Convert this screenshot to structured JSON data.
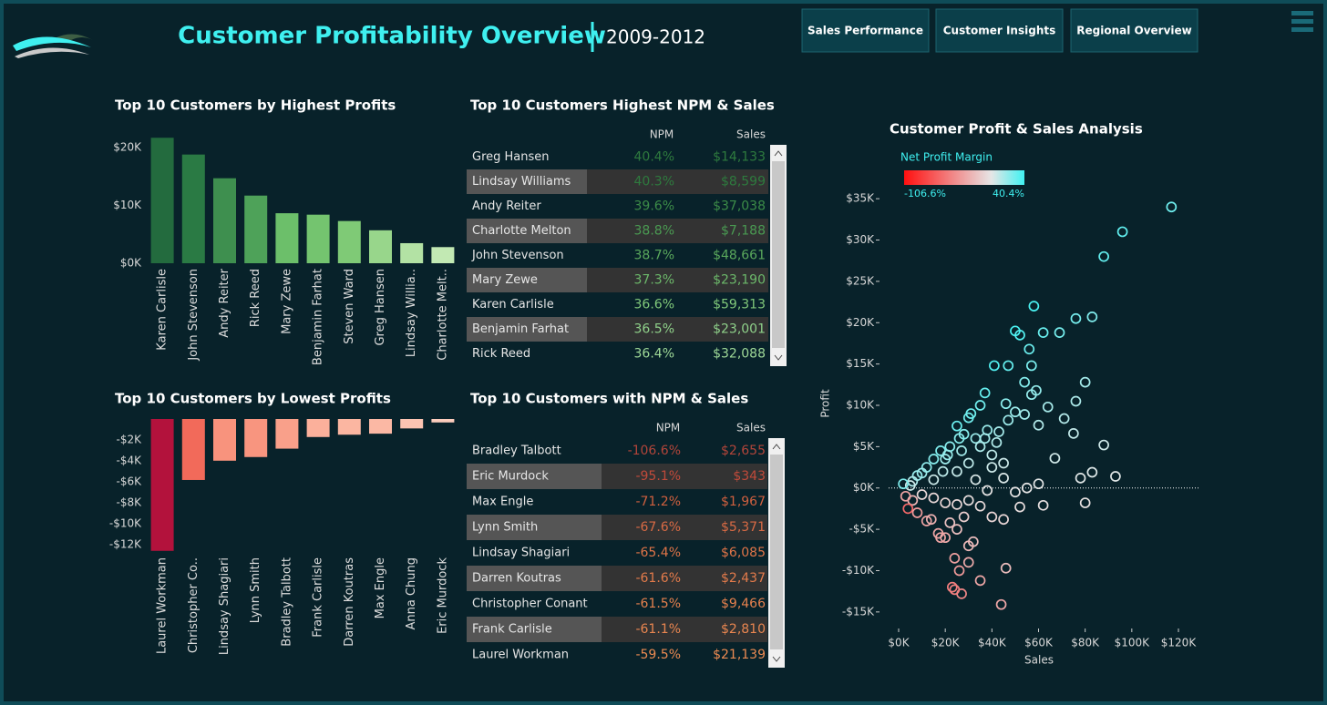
{
  "header": {
    "title": "Customer Profitability Overview",
    "subtitle": "2009-2012"
  },
  "nav": [
    "Sales Performance",
    "Customer Insights",
    "Regional Overview"
  ],
  "chart_data": [
    {
      "type": "bar",
      "title": "Top 10 Customers by Highest Profits",
      "categories": [
        "Karen Carlisle",
        "John Stevenson",
        "Andy Reiter",
        "Rick Reed",
        "Mary Zewe",
        "Benjamin Farhat",
        "Steven Ward",
        "Greg Hansen",
        "Lindsay Willia..",
        "Charlotte Melt.."
      ],
      "values": [
        21700,
        18800,
        14700,
        11700,
        8650,
        8400,
        7300,
        5700,
        3470,
        2790
      ],
      "colors": [
        "#236b3e",
        "#2a7a44",
        "#3e8f4f",
        "#4ea259",
        "#6cbf6a",
        "#74c46f",
        "#7fca76",
        "#98d68b",
        "#b3e2a4",
        "#c2e9b3"
      ],
      "ylim": [
        0,
        23000
      ],
      "yticks": [
        {
          "value": 0,
          "label": "$0K"
        },
        {
          "value": 10000,
          "label": "$10K"
        },
        {
          "value": 20000,
          "label": "$20K"
        }
      ]
    },
    {
      "type": "bar",
      "title": "Top 10 Customers by Lowest Profits",
      "categories": [
        "Laurel Workman",
        "Christopher Co..",
        "Lindsay Shagiari",
        "Lynn Smith",
        "Bradley Talbott",
        "Frank Carlisle",
        "Darren Koutras",
        "Max Engle",
        "Anna Chung",
        "Eric Murdock"
      ],
      "values": [
        -12580,
        -5820,
        -3980,
        -3630,
        -2830,
        -1720,
        -1500,
        -1400,
        -900,
        -330
      ],
      "colors": [
        "#b3123c",
        "#f26a5a",
        "#f8937d",
        "#f8957f",
        "#f9a08a",
        "#fbb09b",
        "#fbb6a1",
        "#fbb8a4",
        "#fcc4b2",
        "#fccdbd"
      ],
      "ylim": [
        -12600,
        0
      ],
      "yticks": [
        {
          "value": -2000,
          "label": "-$2K"
        },
        {
          "value": -4000,
          "label": "-$4K"
        },
        {
          "value": -6000,
          "label": "-$6K"
        },
        {
          "value": -8000,
          "label": "-$8K"
        },
        {
          "value": -10000,
          "label": "-$10K"
        },
        {
          "value": -12000,
          "label": "-$12K"
        }
      ]
    },
    {
      "type": "scatter",
      "title": "Customer Profit & Sales Analysis",
      "x_label": "Sales",
      "y_label": "Profit",
      "x": [
        117000,
        96000,
        88000,
        58000,
        83000,
        76000,
        62000,
        69000,
        50000,
        52000,
        56000,
        57000,
        41000,
        47000,
        80000,
        54000,
        59000,
        57000,
        76000,
        64000,
        46000,
        37000,
        35000,
        50000,
        54000,
        71000,
        47000,
        75000,
        43000,
        60000,
        38000,
        30000,
        25000,
        28000,
        33000,
        22000,
        18000,
        15000,
        12000,
        10000,
        8000,
        6000,
        5000,
        20000,
        27000,
        35000,
        40000,
        45000,
        88000,
        67000,
        83000,
        93000,
        78000,
        60000,
        55000,
        50000,
        45000,
        40000,
        38000,
        62000,
        80000,
        52000,
        35000,
        30000,
        25000,
        20000,
        15000,
        10000,
        6000,
        4000,
        8000,
        12000,
        17000,
        20000,
        25000,
        22000,
        28000,
        40000,
        45000,
        32000,
        30000,
        24000,
        26000,
        23000,
        27000,
        24000,
        35000,
        30000,
        46000,
        44000,
        18000,
        14000,
        3000,
        2000,
        15000,
        25000,
        30000,
        37000,
        31000,
        26000,
        21000,
        19000,
        33000,
        42000
      ],
      "values": [
        34000,
        31000,
        28000,
        22000,
        20700,
        20500,
        18800,
        18800,
        19000,
        18500,
        16800,
        14800,
        14800,
        14800,
        12800,
        12800,
        11800,
        11300,
        10500,
        9800,
        10200,
        11500,
        10000,
        9200,
        8900,
        8400,
        8200,
        6600,
        6800,
        7600,
        7000,
        8500,
        7500,
        6500,
        6000,
        5000,
        4500,
        3500,
        2500,
        1800,
        1500,
        800,
        300,
        3500,
        4500,
        5000,
        4000,
        3000,
        5200,
        3600,
        1900,
        1400,
        1200,
        500,
        0,
        -500,
        1200,
        2500,
        -300,
        -2100,
        -1800,
        -2300,
        -2200,
        -1500,
        -2000,
        -1800,
        -1200,
        -800,
        -1500,
        -2500,
        -3000,
        -4000,
        -5500,
        -6000,
        -5000,
        -4200,
        -3500,
        -3500,
        -3800,
        -6500,
        -7000,
        -8500,
        -10000,
        -12000,
        -12800,
        -12300,
        -11200,
        -9000,
        -9700,
        -14100,
        -6000,
        -3800,
        -1000,
        500,
        1000,
        2000,
        3000,
        6000,
        9000,
        6000,
        4000,
        2000,
        1000,
        5500
      ],
      "xlim": [
        -4300,
        128600
      ],
      "ylim": [
        -17000,
        37000
      ],
      "xticks": [
        {
          "value": 0,
          "label": "$0K"
        },
        {
          "value": 20000,
          "label": "$20K"
        },
        {
          "value": 40000,
          "label": "$40K"
        },
        {
          "value": 60000,
          "label": "$60K"
        },
        {
          "value": 80000,
          "label": "$80K"
        },
        {
          "value": 100000,
          "label": "$100K"
        },
        {
          "value": 120000,
          "label": "$120K"
        }
      ],
      "yticks": [
        {
          "value": -15000,
          "label": "-$15K"
        },
        {
          "value": -10000,
          "label": "-$10K"
        },
        {
          "value": -5000,
          "label": "-$5K"
        },
        {
          "value": 0,
          "label": "$0K"
        },
        {
          "value": 5000,
          "label": "$5K"
        },
        {
          "value": 10000,
          "label": "$10K"
        },
        {
          "value": 15000,
          "label": "$15K"
        },
        {
          "value": 20000,
          "label": "$20K"
        },
        {
          "value": 25000,
          "label": "$25K"
        },
        {
          "value": 30000,
          "label": "$30K"
        },
        {
          "value": 35000,
          "label": "$35K"
        }
      ],
      "color_scale": {
        "title": "Net Profit Margin",
        "min": {
          "value": -106.6,
          "label": "-106.6%"
        },
        "max": {
          "value": 40.4,
          "label": "40.4%"
        },
        "colors": [
          "#ff1010",
          "#e6e6e6",
          "#40f2f2"
        ]
      }
    }
  ],
  "tables": [
    {
      "title": "Top 10 Customers Highest NPM & Sales",
      "columns": [
        "NPM",
        "Sales"
      ],
      "rows": [
        [
          "Greg Hansen",
          "40.4%",
          "$14,133"
        ],
        [
          "Lindsay Williams",
          "40.3%",
          "$8,599"
        ],
        [
          "Andy Reiter",
          "39.6%",
          "$37,038"
        ],
        [
          "Charlotte Melton",
          "38.8%",
          "$7,188"
        ],
        [
          "John Stevenson",
          "38.7%",
          "$48,661"
        ],
        [
          "Mary Zewe",
          "37.3%",
          "$23,190"
        ],
        [
          "Karen Carlisle",
          "36.6%",
          "$59,313"
        ],
        [
          "Benjamin Farhat",
          "36.5%",
          "$23,001"
        ],
        [
          "Rick Reed",
          "36.4%",
          "$32,088"
        ]
      ],
      "value_colors": [
        "#2e7a3e",
        "#2e7a3e",
        "#3c8c48",
        "#4a9a52",
        "#5aa85c",
        "#6cb86a",
        "#80c87a",
        "#8fd18a",
        "#9ed897"
      ]
    },
    {
      "title": "Top 10 Customers with NPM & Sales",
      "columns": [
        "NPM",
        "Sales"
      ],
      "rows": [
        [
          "Bradley Talbott",
          "-106.6%",
          "$2,655"
        ],
        [
          "Eric Murdock",
          "-95.1%",
          "$343"
        ],
        [
          "Max Engle",
          "-71.2%",
          "$1,967"
        ],
        [
          "Lynn Smith",
          "-67.6%",
          "$5,371"
        ],
        [
          "Lindsay Shagiari",
          "-65.4%",
          "$6,085"
        ],
        [
          "Darren Koutras",
          "-61.6%",
          "$2,437"
        ],
        [
          "Christopher Conant",
          "-61.5%",
          "$9,466"
        ],
        [
          "Frank Carlisle",
          "-61.1%",
          "$2,810"
        ],
        [
          "Laurel Workman",
          "-59.5%",
          "$21,139"
        ]
      ],
      "value_colors": [
        "#b2453a",
        "#c04a3a",
        "#d0603f",
        "#d86a44",
        "#df7448",
        "#e37b4b",
        "#e6814e",
        "#e98650",
        "#ec8b52"
      ]
    }
  ]
}
